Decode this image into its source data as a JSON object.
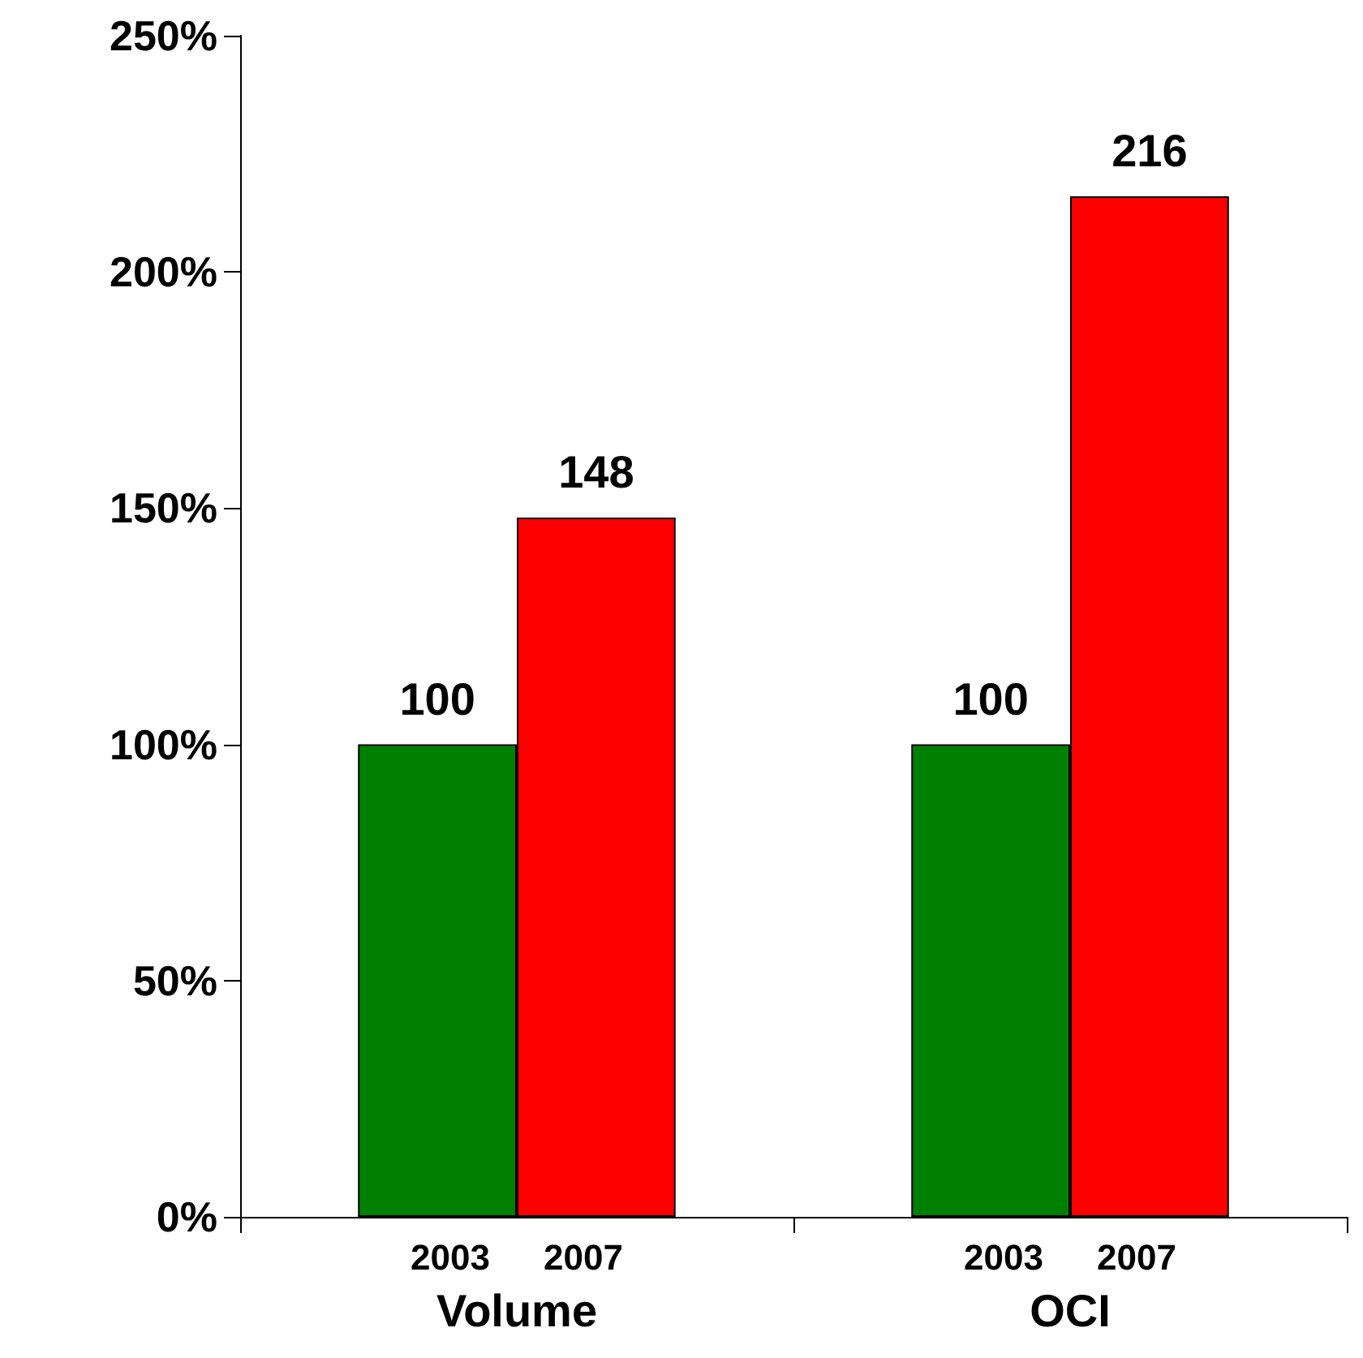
{
  "chart_data": {
    "type": "bar",
    "categories": [
      "Volume",
      "OCI"
    ],
    "series": [
      {
        "name": "2003",
        "color": "#008000",
        "values": [
          100,
          100
        ]
      },
      {
        "name": "2007",
        "color": "#ff0000",
        "values": [
          148,
          216
        ]
      }
    ],
    "ylim": [
      0,
      250
    ],
    "yticks": [
      {
        "value": 0,
        "label": "0%"
      },
      {
        "value": 50,
        "label": "50%"
      },
      {
        "value": 100,
        "label": "100%"
      },
      {
        "value": 150,
        "label": "150%"
      },
      {
        "value": 200,
        "label": "200%"
      },
      {
        "value": 250,
        "label": "250%"
      }
    ],
    "data_labels": true,
    "grid": false,
    "legend": false
  }
}
